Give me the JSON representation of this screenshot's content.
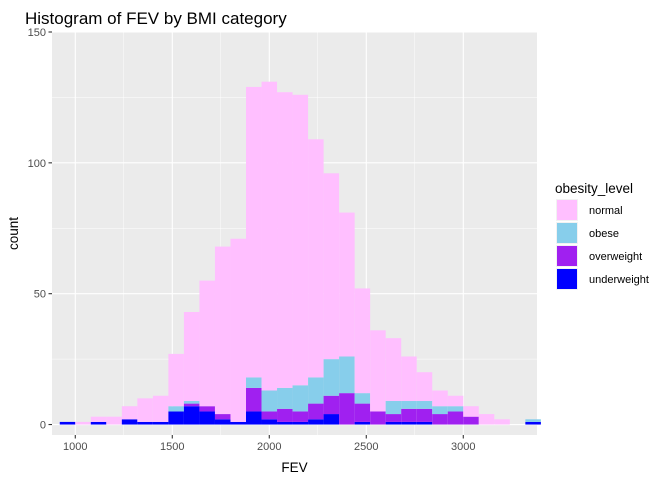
{
  "chart_data": {
    "type": "histogram",
    "title": "Histogram of FEV by BMI category",
    "xlabel": "FEV",
    "ylabel": "count",
    "xlim": [
      880,
      3380
    ],
    "ylim": [
      -4,
      150
    ],
    "x_ticks": [
      1000,
      1500,
      2000,
      2500,
      3000
    ],
    "y_ticks": [
      0,
      50,
      100,
      150
    ],
    "grid": true,
    "stacked": true,
    "legend": {
      "title": "obesity_level",
      "position": "right"
    },
    "bin_width": 80,
    "bins_start": 920,
    "series": [
      {
        "name": "normal",
        "color": "#ffbfff",
        "values": [
          0,
          1,
          2,
          3,
          5,
          9,
          10,
          20,
          34,
          48,
          64,
          70,
          111,
          118,
          113,
          111,
          91,
          71,
          55,
          40,
          31,
          24,
          17,
          11,
          6,
          4,
          4,
          4,
          2,
          0,
          0
        ]
      },
      {
        "name": "obese",
        "color": "#87ceeb",
        "values": [
          0,
          0,
          0,
          0,
          0,
          0,
          0,
          2,
          1,
          0,
          0,
          0,
          4,
          8,
          8,
          10,
          10,
          14,
          14,
          4,
          0,
          5,
          3,
          3,
          3,
          2,
          0,
          0,
          0,
          0,
          1
        ]
      },
      {
        "name": "overweight",
        "color": "#a020f0",
        "values": [
          0,
          0,
          0,
          0,
          0,
          0,
          0,
          0,
          1,
          2,
          2,
          0,
          9,
          3,
          5,
          4,
          6,
          7,
          12,
          7,
          5,
          3,
          5,
          5,
          4,
          5,
          3,
          0,
          0,
          0,
          0
        ]
      },
      {
        "name": "underweight",
        "color": "#0000ff",
        "values": [
          1,
          0,
          1,
          0,
          2,
          1,
          1,
          5,
          7,
          5,
          2,
          1,
          5,
          2,
          1,
          1,
          2,
          4,
          0,
          1,
          0,
          1,
          1,
          1,
          0,
          0,
          0,
          0,
          0,
          0,
          1
        ]
      }
    ]
  }
}
